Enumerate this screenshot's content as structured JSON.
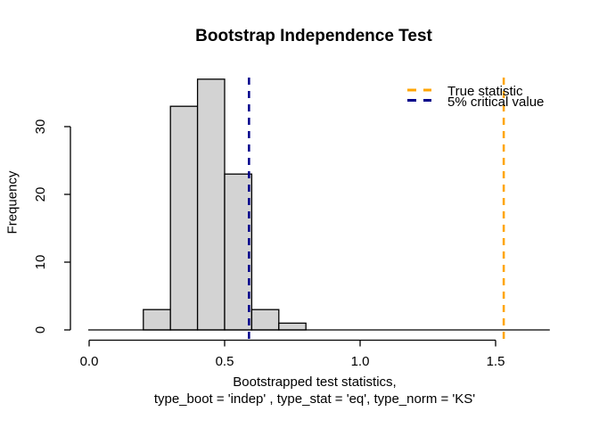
{
  "chart_data": {
    "type": "histogram",
    "title": "Bootstrap Independence Test",
    "ylabel": "Frequency",
    "xlabel_line1": "Bootstrapped test statistics,",
    "xlabel_line2": "type_boot = 'indep' , type_stat = 'eq', type_norm = 'KS'",
    "bins": {
      "breaks": [
        0.2,
        0.3,
        0.4,
        0.5,
        0.6,
        0.7,
        0.8
      ],
      "counts": [
        3,
        33,
        37,
        23,
        3,
        1
      ]
    },
    "bar_fill": "#d3d3d3",
    "bar_stroke": "#000000",
    "x_ticks": [
      0.0,
      0.5,
      1.0,
      1.5
    ],
    "x_tick_labels": [
      "0.0",
      "0.5",
      "1.0",
      "1.5"
    ],
    "y_ticks": [
      0,
      10,
      20,
      30
    ],
    "y_tick_labels": [
      "0",
      "10",
      "20",
      "30"
    ],
    "xlim": [
      0,
      1.7
    ],
    "ylim": [
      0,
      37
    ],
    "baseline_extent": [
      0.0,
      1.7
    ],
    "grid": "off",
    "vlines": [
      {
        "label": "True statistic",
        "value": 1.53,
        "color": "#FFA500",
        "style": "dashed"
      },
      {
        "label": "5% critical value",
        "value": 0.59,
        "color": "#00008B",
        "style": "dashed"
      }
    ],
    "legend": {
      "position": "top-right",
      "entries": [
        {
          "label": "True statistic",
          "color": "#FFA500",
          "style": "dashed"
        },
        {
          "label": "5% critical value",
          "color": "#00008B",
          "style": "dashed"
        }
      ]
    }
  }
}
